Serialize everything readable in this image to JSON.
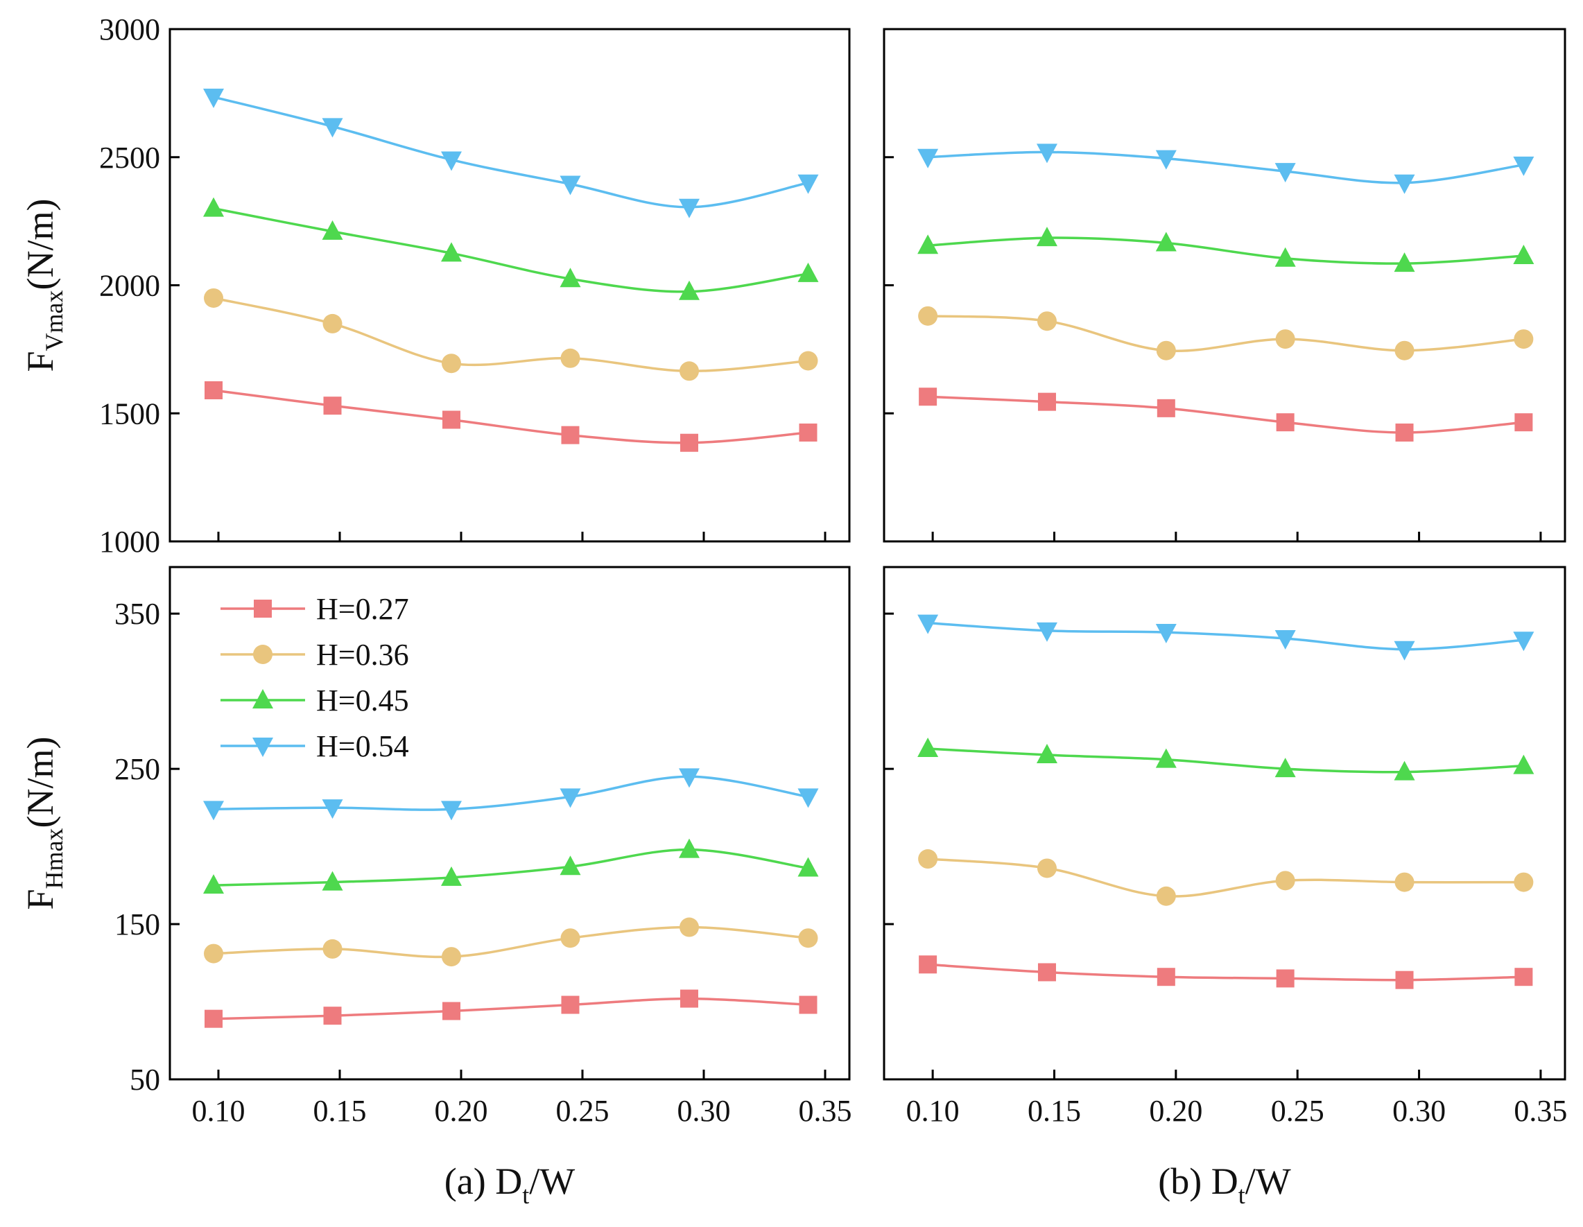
{
  "chart_data": {
    "type": "line",
    "x": [
      0.098,
      0.147,
      0.196,
      0.245,
      0.294,
      0.343
    ],
    "xlim": [
      0.08,
      0.36
    ],
    "xticks": [
      "0.10",
      "0.15",
      "0.20",
      "0.25",
      "0.30",
      "0.35"
    ],
    "legend": [
      {
        "label": "H=0.27",
        "color": "#EE7B7E",
        "marker": "square"
      },
      {
        "label": "H=0.36",
        "color": "#E9C57E",
        "marker": "circle"
      },
      {
        "label": "H=0.45",
        "color": "#4ED84E",
        "marker": "triangle-up"
      },
      {
        "label": "H=0.54",
        "color": "#5CBDF0",
        "marker": "triangle-down"
      }
    ],
    "legend_location": "upper-left of panel (a) bottom",
    "panels": [
      {
        "id": "a-top",
        "column": "a",
        "row": "top",
        "ylabel": "F",
        "ylabel_sub": "Vmax",
        "ylabel_unit": "(N/m)",
        "ylim": [
          1000,
          3000
        ],
        "yticks": [
          "1000",
          "1500",
          "2000",
          "2500",
          "3000"
        ],
        "series": [
          {
            "name": "H=0.27",
            "values": [
              1590,
              1530,
              1475,
              1415,
              1385,
              1425
            ]
          },
          {
            "name": "H=0.36",
            "values": [
              1950,
              1850,
              1695,
              1715,
              1665,
              1705
            ]
          },
          {
            "name": "H=0.45",
            "values": [
              2300,
              2210,
              2125,
              2025,
              1975,
              2045
            ]
          },
          {
            "name": "H=0.54",
            "values": [
              2735,
              2620,
              2490,
              2395,
              2305,
              2400
            ]
          }
        ]
      },
      {
        "id": "b-top",
        "column": "b",
        "row": "top",
        "ylim": [
          1000,
          3000
        ],
        "series": [
          {
            "name": "H=0.27",
            "values": [
              1565,
              1545,
              1520,
              1465,
              1425,
              1465
            ]
          },
          {
            "name": "H=0.36",
            "values": [
              1880,
              1860,
              1745,
              1790,
              1745,
              1790
            ]
          },
          {
            "name": "H=0.45",
            "values": [
              2155,
              2185,
              2165,
              2105,
              2085,
              2115
            ]
          },
          {
            "name": "H=0.54",
            "values": [
              2500,
              2520,
              2495,
              2445,
              2400,
              2470
            ]
          }
        ]
      },
      {
        "id": "a-bottom",
        "column": "a",
        "row": "bottom",
        "ylabel": "F",
        "ylabel_sub": "Hmax",
        "ylabel_unit": "(N/m)",
        "ylim": [
          50,
          380
        ],
        "yticks": [
          "50",
          "150",
          "250",
          "350"
        ],
        "series": [
          {
            "name": "H=0.27",
            "values": [
              89,
              91,
              94,
              98,
              102,
              98
            ]
          },
          {
            "name": "H=0.36",
            "values": [
              131,
              134,
              129,
              141,
              148,
              141
            ]
          },
          {
            "name": "H=0.45",
            "values": [
              175,
              177,
              180,
              187,
              198,
              186
            ]
          },
          {
            "name": "H=0.54",
            "values": [
              224,
              225,
              224,
              232,
              245,
              232
            ]
          }
        ]
      },
      {
        "id": "b-bottom",
        "column": "b",
        "row": "bottom",
        "ylim": [
          50,
          380
        ],
        "series": [
          {
            "name": "H=0.27",
            "values": [
              124,
              119,
              116,
              115,
              114,
              116
            ]
          },
          {
            "name": "H=0.36",
            "values": [
              192,
              186,
              168,
              178,
              177,
              177
            ]
          },
          {
            "name": "H=0.45",
            "values": [
              263,
              259,
              256,
              250,
              248,
              252
            ]
          },
          {
            "name": "H=0.54",
            "values": [
              344,
              339,
              338,
              334,
              327,
              333
            ]
          }
        ]
      }
    ],
    "xlabels": [
      {
        "column": "a",
        "prefix": "(a) D",
        "sub": "t",
        "suffix": "/W"
      },
      {
        "column": "b",
        "prefix": "(b) D",
        "sub": "t",
        "suffix": "/W"
      }
    ]
  }
}
